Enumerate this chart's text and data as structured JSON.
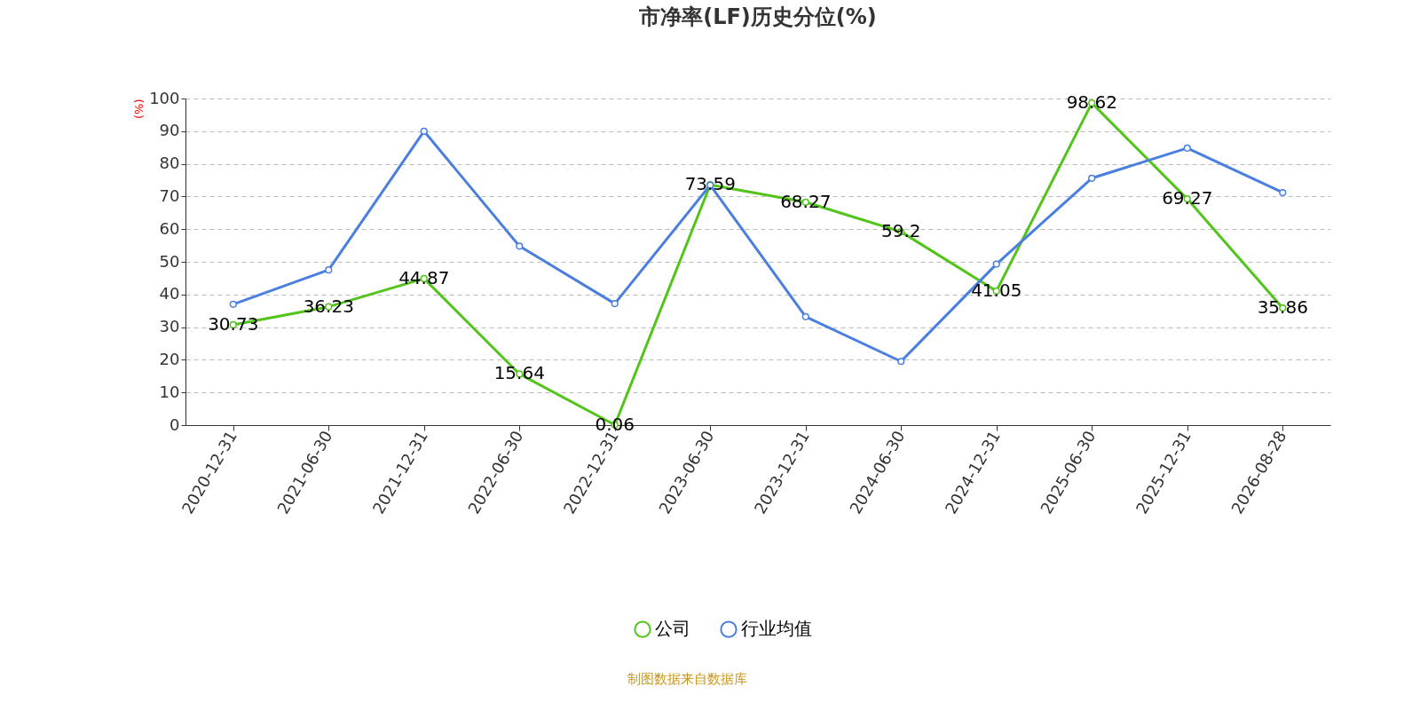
{
  "chart_data": {
    "type": "line",
    "title": "市净率(LF)历史分位(%)",
    "ylabel": "(%)",
    "categories": [
      "2020-12-31",
      "2021-06-30",
      "2021-12-31",
      "2022-06-30",
      "2022-12-31",
      "2023-06-30",
      "2023-12-31",
      "2024-06-30",
      "2024-12-31",
      "2025-06-30",
      "2025-12-31",
      "2026-08-28"
    ],
    "series": [
      {
        "name": "公司",
        "color": "#52c41a",
        "values": [
          30.73,
          36.23,
          44.87,
          15.64,
          0.06,
          73.59,
          68.27,
          59.2,
          41.05,
          98.62,
          69.27,
          35.86
        ],
        "value_labels": [
          "30.73",
          "36.23",
          "44.87",
          "15.64",
          "0.06",
          "73.59",
          "68.27",
          "59.2",
          "41.05",
          "98.62",
          "69.27",
          "35.86"
        ]
      },
      {
        "name": "行业均值",
        "color": "#4a7fdf",
        "values": [
          37,
          47.5,
          90,
          54.8,
          37.2,
          73.5,
          33.2,
          19.5,
          49.3,
          75.6,
          84.8,
          71.2
        ]
      }
    ],
    "ylim": [
      0,
      100
    ],
    "yticks": [
      0,
      10,
      20,
      30,
      40,
      50,
      60,
      70,
      80,
      90,
      100
    ],
    "grid": "y",
    "legend": "bottom",
    "marker": "circle",
    "line_style": "solid",
    "annotations": [
      "制图数据来自数据库"
    ]
  }
}
